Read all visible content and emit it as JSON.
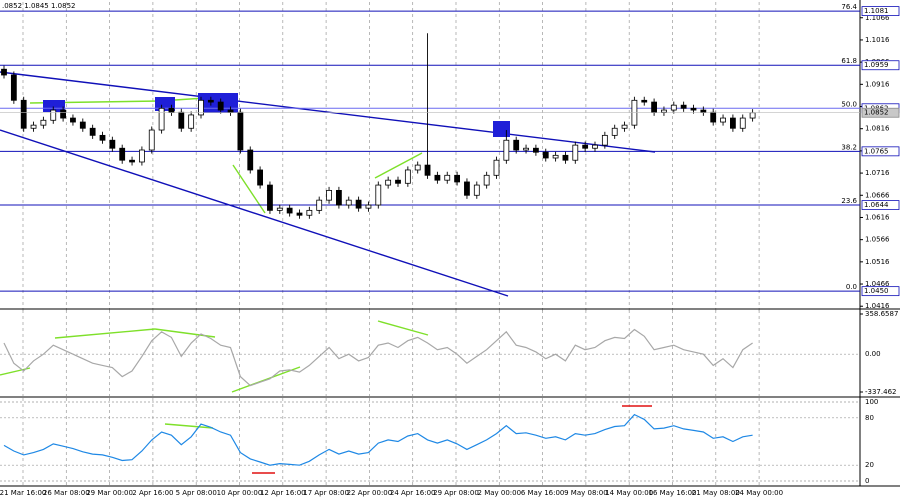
{
  "chart_data": [
    {
      "type": "candlestick",
      "title": ".0852 1.0845 1.0852",
      "open": [
        1.095,
        1.0937,
        1.088,
        1.0817,
        1.0824,
        1.0835,
        1.0858,
        1.084,
        1.0831,
        1.0817,
        1.0801,
        1.079,
        1.0772,
        1.0745,
        1.0741,
        1.0768,
        1.0813,
        1.0862,
        1.0853,
        1.0817,
        1.0847,
        1.088,
        1.0876,
        1.0858,
        1.0853,
        1.0768,
        1.0723,
        1.0689,
        1.0632,
        1.0637,
        1.0626,
        1.0621,
        1.0632,
        1.0655,
        1.0677,
        1.0644,
        1.0655,
        1.0637,
        1.0644,
        1.0689,
        1.07,
        1.0693,
        1.0723,
        1.0734,
        1.0711,
        1.07,
        1.0711,
        1.0696,
        1.0666,
        1.0689,
        1.0711,
        1.0745,
        1.079,
        1.0768,
        1.0772,
        1.0763,
        1.075,
        1.0756,
        1.0745,
        1.0779,
        1.0772,
        1.0779,
        1.0801,
        1.0817,
        1.0824,
        1.088,
        1.0876,
        1.0853,
        1.0858,
        1.0869,
        1.0862,
        1.0858,
        1.0853,
        1.0831,
        1.084,
        1.0817,
        1.084
      ],
      "high": [
        1.0958,
        1.0945,
        1.0888,
        1.0832,
        1.0843,
        1.0866,
        1.0866,
        1.0848,
        1.0839,
        1.0825,
        1.0809,
        1.0798,
        1.078,
        1.0753,
        1.0776,
        1.0821,
        1.087,
        1.087,
        1.0861,
        1.0855,
        1.0888,
        1.0888,
        1.0884,
        1.0866,
        1.0861,
        1.0776,
        1.0731,
        1.0697,
        1.0645,
        1.0645,
        1.0634,
        1.064,
        1.0663,
        1.0685,
        1.0685,
        1.0663,
        1.0663,
        1.0652,
        1.0697,
        1.0708,
        1.0708,
        1.0731,
        1.0742,
        1.1031,
        1.0719,
        1.0719,
        1.0719,
        1.0704,
        1.0697,
        1.0719,
        1.0753,
        1.0813,
        1.0798,
        1.078,
        1.078,
        1.0771,
        1.0764,
        1.0764,
        1.0787,
        1.0787,
        1.0787,
        1.0809,
        1.0825,
        1.0832,
        1.0888,
        1.0888,
        1.0884,
        1.0866,
        1.0877,
        1.0877,
        1.087,
        1.0866,
        1.0861,
        1.0848,
        1.0848,
        1.0848,
        1.086
      ],
      "low": [
        1.0929,
        1.0872,
        1.0809,
        1.0809,
        1.0816,
        1.0827,
        1.0832,
        1.0823,
        1.0809,
        1.0793,
        1.0782,
        1.0764,
        1.0737,
        1.0733,
        1.0733,
        1.076,
        1.0805,
        1.0845,
        1.0809,
        1.0809,
        1.0839,
        1.0868,
        1.085,
        1.0845,
        1.076,
        1.0715,
        1.0681,
        1.0624,
        1.0624,
        1.0618,
        1.0613,
        1.0613,
        1.0624,
        1.0647,
        1.0636,
        1.0636,
        1.0629,
        1.0629,
        1.0636,
        1.0681,
        1.0685,
        1.0685,
        1.0715,
        1.0703,
        1.0692,
        1.0692,
        1.0688,
        1.0658,
        1.0658,
        1.0681,
        1.0703,
        1.0737,
        1.076,
        1.076,
        1.0755,
        1.0742,
        1.0742,
        1.0737,
        1.0737,
        1.0764,
        1.0764,
        1.0771,
        1.0793,
        1.0809,
        1.0816,
        1.0868,
        1.0845,
        1.0845,
        1.085,
        1.0854,
        1.085,
        1.0845,
        1.0823,
        1.0823,
        1.0809,
        1.0809,
        1.0832
      ],
      "close": [
        1.0937,
        1.088,
        1.0817,
        1.0824,
        1.0835,
        1.0858,
        1.084,
        1.0831,
        1.0817,
        1.0801,
        1.079,
        1.0772,
        1.0745,
        1.0741,
        1.0768,
        1.0813,
        1.0862,
        1.0853,
        1.0817,
        1.0847,
        1.088,
        1.0876,
        1.0858,
        1.0853,
        1.0768,
        1.0723,
        1.0689,
        1.0632,
        1.0637,
        1.0626,
        1.0621,
        1.0632,
        1.0655,
        1.0677,
        1.0644,
        1.0655,
        1.0637,
        1.0644,
        1.0689,
        1.07,
        1.0693,
        1.0723,
        1.0734,
        1.0711,
        1.07,
        1.0711,
        1.0696,
        1.0666,
        1.0689,
        1.0711,
        1.0745,
        1.079,
        1.0768,
        1.0772,
        1.0763,
        1.075,
        1.0756,
        1.0745,
        1.0779,
        1.0772,
        1.0779,
        1.0801,
        1.0817,
        1.0824,
        1.088,
        1.0876,
        1.0853,
        1.0858,
        1.0869,
        1.0862,
        1.0858,
        1.0853,
        1.0831,
        1.084,
        1.0817,
        1.084,
        1.0852
      ],
      "ylim": [
        1.0412,
        1.1106
      ],
      "yticks": [
        1.1066,
        1.1016,
        1.0966,
        1.0916,
        1.0866,
        1.0816,
        1.0766,
        1.0716,
        1.0666,
        1.0616,
        1.0566,
        1.0516,
        1.0466,
        1.0416
      ],
      "levels": [
        {
          "value": 1.1081,
          "value_label": "1.1081",
          "label": "76.4"
        },
        {
          "value": 1.0959,
          "value_label": "1.0959",
          "label": "61.8"
        },
        {
          "value": 1.0862,
          "value_label": "1.0862",
          "label": "50.0"
        },
        {
          "value": 1.0765,
          "value_label": "1.0765",
          "label": "38.2"
        },
        {
          "value": 1.0644,
          "value_label": "1.0644",
          "label": "23.6"
        },
        {
          "value": 1.045,
          "value_label": "1.0450",
          "label": "0.0"
        }
      ],
      "x_labels": [
        "21 Mar 16:00",
        "26 Mar 08:00",
        "29 Mar 00:00",
        "2 Apr 16:00",
        "5 Apr 08:00",
        "10 Apr 00:00",
        "12 Apr 16:00",
        "17 Apr 08:00",
        "22 Apr 00:00",
        "24 Apr 16:00",
        "29 Apr 08:00",
        "2 May 00:00",
        "6 May 16:00",
        "9 May 08:00",
        "14 May 00:00",
        "16 May 16:00",
        "21 May 08:00",
        "24 May 00:00"
      ]
    },
    {
      "type": "line",
      "color": "#a8a8a8",
      "values": [
        100,
        -80,
        -150,
        -60,
        0,
        80,
        40,
        0,
        -40,
        -80,
        -100,
        -120,
        -200,
        -150,
        -20,
        120,
        200,
        150,
        -20,
        100,
        180,
        140,
        80,
        60,
        -200,
        -280,
        -250,
        -220,
        -150,
        -140,
        -160,
        -100,
        -20,
        60,
        -40,
        0,
        -60,
        -30,
        80,
        100,
        60,
        120,
        150,
        100,
        40,
        60,
        0,
        -80,
        -20,
        40,
        120,
        200,
        80,
        60,
        20,
        -40,
        0,
        -60,
        80,
        40,
        60,
        120,
        150,
        140,
        220,
        160,
        40,
        60,
        80,
        40,
        20,
        0,
        -100,
        -40,
        -120,
        40,
        100
      ],
      "ylim": [
        -337.462,
        358.6587
      ],
      "yticks": [
        358.6587,
        {
          "value": 0,
          "label": "0.00"
        },
        -337.462
      ]
    },
    {
      "type": "line",
      "color": "#1e88e5",
      "values": [
        45,
        38,
        33,
        36,
        40,
        47,
        44,
        41,
        37,
        34,
        33,
        30,
        26,
        27,
        38,
        52,
        62,
        58,
        46,
        56,
        72,
        68,
        62,
        58,
        36,
        28,
        24,
        20,
        22,
        21,
        20,
        25,
        33,
        40,
        34,
        38,
        34,
        36,
        48,
        52,
        50,
        57,
        60,
        52,
        48,
        52,
        47,
        40,
        46,
        52,
        60,
        70,
        60,
        61,
        58,
        54,
        56,
        52,
        60,
        58,
        60,
        65,
        69,
        70,
        84,
        78,
        66,
        67,
        70,
        66,
        64,
        62,
        54,
        56,
        50,
        56,
        58
      ],
      "ylim": [
        0,
        100
      ],
      "yticks": [
        100,
        80,
        20,
        0
      ]
    }
  ]
}
